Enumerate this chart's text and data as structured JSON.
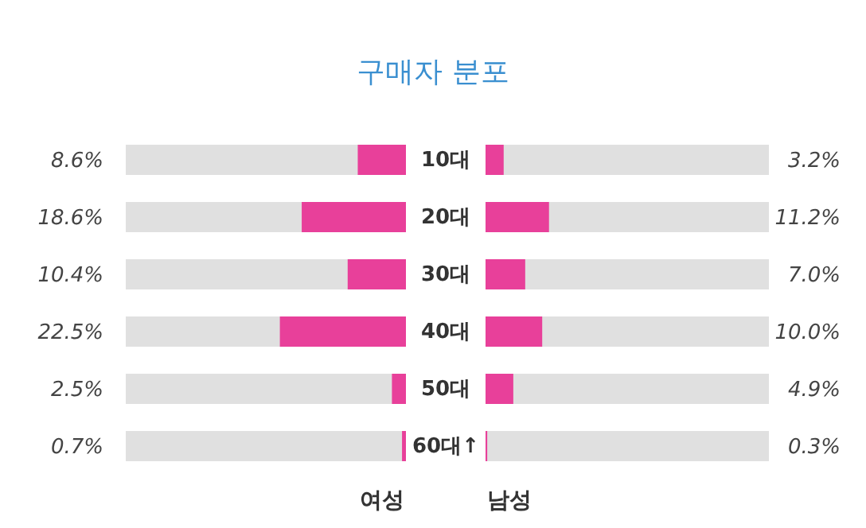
{
  "chart_data": [
    {
      "type": "bar",
      "title": "구매자 분포",
      "orientation": "horizontal",
      "categories": [
        "10대",
        "20대",
        "30대",
        "40대",
        "50대",
        "60대↑"
      ],
      "series": [
        {
          "name": "여성",
          "color": "#e8409a",
          "values": [
            8.6,
            18.6,
            10.4,
            22.5,
            2.5,
            0.7
          ],
          "value_labels": [
            "8.6%",
            "18.6%",
            "10.4%",
            "22.5%",
            "2.5%",
            "0.7%"
          ]
        }
      ],
      "xlim": [
        50,
        0
      ],
      "tick_labels": "y"
    },
    {
      "type": "bar",
      "orientation": "horizontal",
      "categories": [
        null,
        null,
        null,
        null,
        null,
        null
      ],
      "series": [
        {
          "name": "남성",
          "color": "#e8409a",
          "values": [
            3.2,
            11.2,
            7.0,
            10.0,
            4.9,
            0.3
          ],
          "value_labels": [
            "3.2%",
            "11.2%",
            "7.0%",
            "10.0%",
            "4.9%",
            "0.3%"
          ]
        }
      ],
      "xlim": [
        0,
        50
      ],
      "tick_labels": false
    }
  ]
}
